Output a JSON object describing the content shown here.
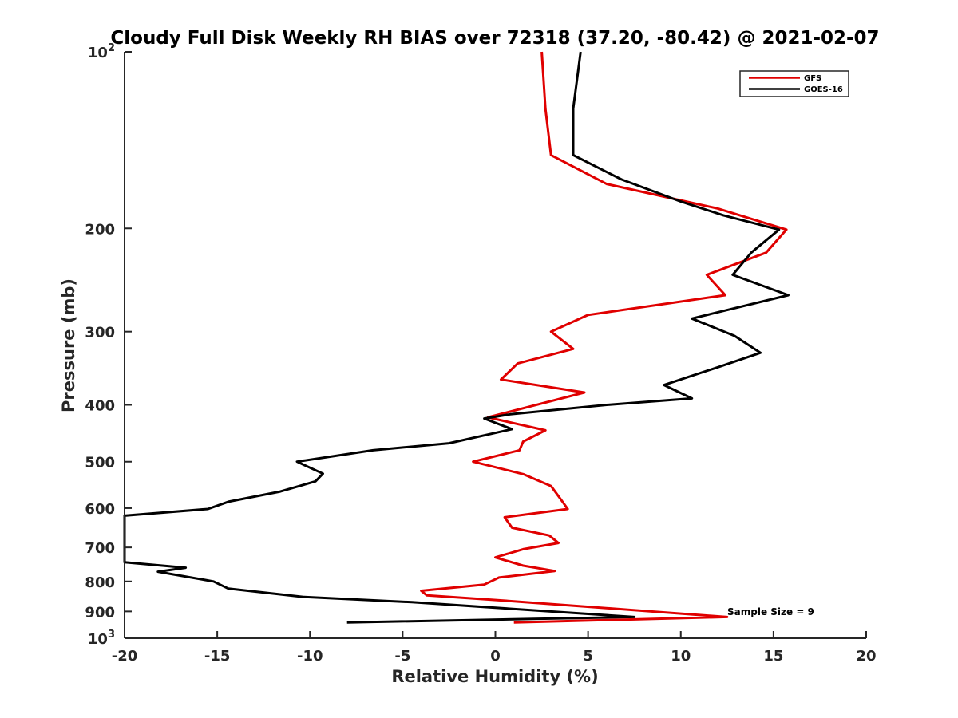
{
  "chart_data": {
    "type": "line",
    "title": "Cloudy Full Disk Weekly RH BIAS over 72318 (37.20, -80.42) @ 2021-02-07",
    "xlabel": "Relative Humidity (%)",
    "ylabel": "Pressure (mb)",
    "xlim": [
      -20,
      20
    ],
    "ylim": [
      100,
      1000
    ],
    "yscale": "log",
    "yreverse": true,
    "grid": false,
    "legend_position": "top-right",
    "x_ticks": [
      -20,
      -15,
      -10,
      -5,
      0,
      5,
      10,
      15,
      20
    ],
    "x_tick_labels": [
      "-20",
      "-15",
      "-10",
      "-5",
      "0",
      "5",
      "10",
      "15",
      "20"
    ],
    "y_ticks": [
      {
        "value": 100,
        "base": "10",
        "exp": "2"
      },
      {
        "value": 200,
        "label": "200"
      },
      {
        "value": 300,
        "label": "300"
      },
      {
        "value": 400,
        "label": "400"
      },
      {
        "value": 500,
        "label": "500"
      },
      {
        "value": 600,
        "label": "600"
      },
      {
        "value": 700,
        "label": "700"
      },
      {
        "value": 800,
        "label": "800"
      },
      {
        "value": 900,
        "label": "900"
      },
      {
        "value": 1000,
        "base": "10",
        "exp": "3"
      }
    ],
    "annotation": "Sample Size = 9",
    "series": [
      {
        "name": "GFS",
        "color": "#e00000",
        "points": [
          [
            2.5,
            100
          ],
          [
            2.7,
            125
          ],
          [
            3.0,
            150
          ],
          [
            6.0,
            168
          ],
          [
            12.0,
            185
          ],
          [
            15.7,
            201
          ],
          [
            14.6,
            220
          ],
          [
            11.4,
            240
          ],
          [
            12.4,
            260
          ],
          [
            5.0,
            281
          ],
          [
            3.0,
            300
          ],
          [
            4.2,
            321
          ],
          [
            1.2,
            340
          ],
          [
            0.3,
            362
          ],
          [
            4.8,
            381
          ],
          [
            -0.4,
            420
          ],
          [
            2.7,
            442
          ],
          [
            1.5,
            462
          ],
          [
            1.3,
            478
          ],
          [
            -1.2,
            500
          ],
          [
            1.5,
            525
          ],
          [
            3.0,
            550
          ],
          [
            3.5,
            578
          ],
          [
            3.9,
            602
          ],
          [
            0.5,
            622
          ],
          [
            0.9,
            648
          ],
          [
            2.9,
            668
          ],
          [
            3.4,
            688
          ],
          [
            1.5,
            705
          ],
          [
            0.0,
            728
          ],
          [
            1.5,
            752
          ],
          [
            3.2,
            768
          ],
          [
            0.2,
            788
          ],
          [
            -0.6,
            810
          ],
          [
            -4.0,
            830
          ],
          [
            -3.7,
            845
          ],
          [
            1.0,
            865
          ],
          [
            12.5,
            920
          ],
          [
            1.0,
            940
          ]
        ]
      },
      {
        "name": "GOES-16",
        "color": "#000000",
        "points": [
          [
            4.6,
            100
          ],
          [
            4.2,
            125
          ],
          [
            4.2,
            150
          ],
          [
            6.8,
            165
          ],
          [
            10.0,
            180
          ],
          [
            12.3,
            190
          ],
          [
            15.3,
            201
          ],
          [
            13.8,
            220
          ],
          [
            12.8,
            240
          ],
          [
            15.8,
            260
          ],
          [
            10.6,
            285
          ],
          [
            12.9,
            305
          ],
          [
            14.3,
            326
          ],
          [
            12.0,
            345
          ],
          [
            9.1,
            370
          ],
          [
            10.6,
            390
          ],
          [
            6.0,
            400
          ],
          [
            0.8,
            415
          ],
          [
            -0.6,
            422
          ],
          [
            0.9,
            440
          ],
          [
            -2.5,
            465
          ],
          [
            -6.6,
            478
          ],
          [
            -10.7,
            500
          ],
          [
            -9.3,
            524
          ],
          [
            -9.7,
            540
          ],
          [
            -11.6,
            562
          ],
          [
            -14.4,
            585
          ],
          [
            -15.5,
            602
          ],
          [
            -20,
            618
          ],
          [
            -20,
            742
          ],
          [
            -16.7,
            758
          ],
          [
            -18.2,
            770
          ],
          [
            -15.2,
            800
          ],
          [
            -14.4,
            823
          ],
          [
            -10.4,
            850
          ],
          [
            -4.5,
            868
          ],
          [
            7.5,
            920
          ],
          [
            -8.0,
            940
          ]
        ]
      }
    ]
  }
}
